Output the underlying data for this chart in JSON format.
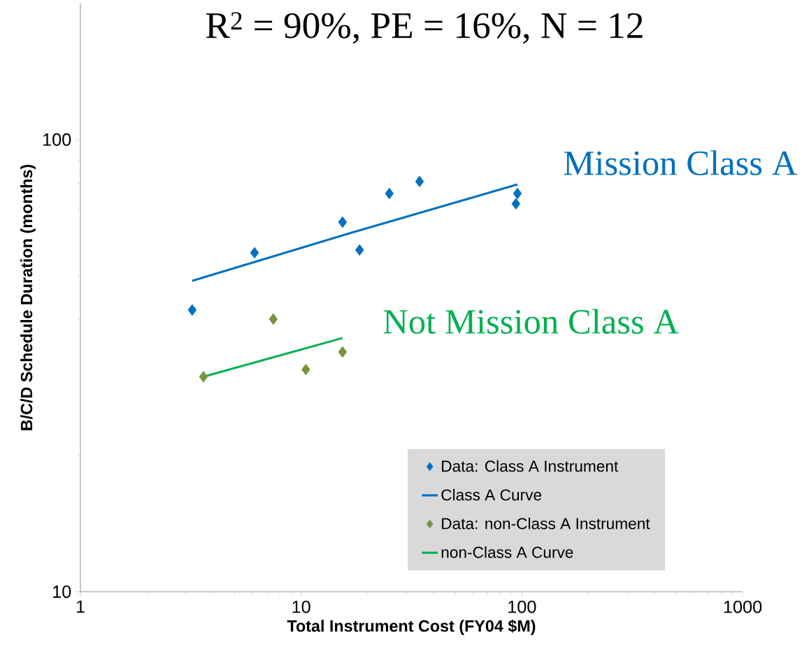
{
  "chart_data": {
    "type": "scatter",
    "title": "R$^{2}$ = 90%, PE = 16%, N = 12",
    "xlabel": "Total Instrument Cost (FY04 $M)",
    "ylabel": "B/C/D Schedule Duration (months)",
    "log": "xy",
    "xlim": [
      1,
      1000
    ],
    "ylim": [
      10,
      200
    ],
    "xticks": [
      1,
      10,
      100,
      1000
    ],
    "yticks": [
      10,
      100
    ],
    "legend": "bottom right",
    "series": [
      {
        "name": "Data: Class A Instrument",
        "marker": "diamond",
        "color": "#0070c0",
        "x": [
          3.21,
          6.15,
          15.4,
          18.4,
          25.1,
          34.4,
          95.5,
          94.0
        ],
        "values": [
          42.0,
          56.2,
          65.7,
          57.0,
          76.0,
          80.8,
          76.0,
          72.1
        ]
      },
      {
        "name": "Class A Curve",
        "type": "line",
        "color": "#0070c0",
        "x": [
          3.21,
          18.4,
          95.5
        ],
        "values": [
          48.7,
          63.0,
          79.6
        ]
      },
      {
        "name": "Data: non-Class A Instrument",
        "marker": "diamond",
        "color": "#77933c",
        "x": [
          3.61,
          7.48,
          10.5,
          15.4
        ],
        "values": [
          29.9,
          40.1,
          31.0,
          33.9
        ]
      },
      {
        "name": "non-Class A Curve",
        "type": "line",
        "color": "#00b050",
        "x": [
          3.61,
          15.4
        ],
        "values": [
          29.9,
          36.4
        ]
      }
    ],
    "annotations": [
      "Mission Class A",
      "Not Mission Class A"
    ]
  }
}
